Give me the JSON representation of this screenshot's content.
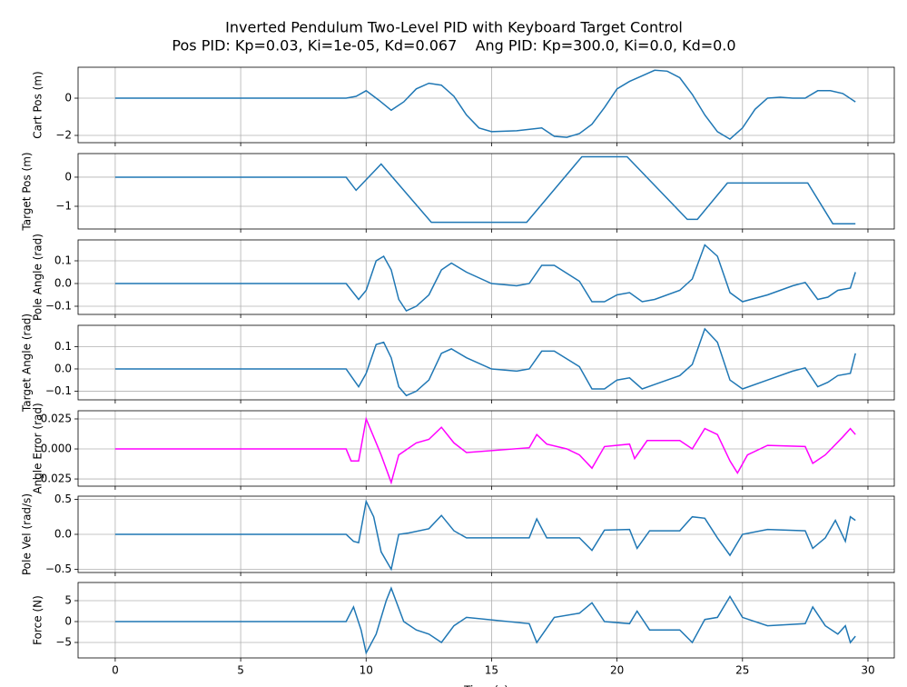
{
  "chart_data": [
    {
      "type": "line",
      "title": "Inverted Pendulum Two-Level PID with Keyboard Target Control",
      "subtitle": "Pos PID: Kp=0.03, Ki=1e-05, Kd=0.067    Ang PID: Kp=300.0, Ki=0.0, Kd=0.0",
      "ylabel": "Cart Pos (m)",
      "color": "#1f77b4",
      "grid": true,
      "xlim": [
        -1.48,
        31.05
      ],
      "xticks": [
        0,
        5,
        10,
        15,
        20,
        25,
        30
      ],
      "ylim": [
        -2.39,
        1.66
      ],
      "yticks": [
        {
          "value": -2,
          "label": "−2"
        },
        0
      ],
      "x": [
        0,
        9.2,
        9.6,
        10,
        10.5,
        11,
        11.5,
        12,
        12.5,
        13,
        13.5,
        14,
        14.5,
        15,
        16,
        17,
        17.5,
        18,
        18.5,
        19,
        19.5,
        20,
        20.5,
        21,
        21.5,
        22,
        22.5,
        23,
        23.5,
        24,
        24.5,
        25,
        25.5,
        26,
        26.5,
        27,
        27.5,
        28,
        28.5,
        29,
        29.5
      ],
      "values": [
        0,
        0,
        0.1,
        0.4,
        -0.1,
        -0.65,
        -0.2,
        0.5,
        0.8,
        0.7,
        0.1,
        -0.9,
        -1.6,
        -1.8,
        -1.75,
        -1.6,
        -2.05,
        -2.1,
        -1.9,
        -1.4,
        -0.5,
        0.5,
        0.9,
        1.2,
        1.5,
        1.45,
        1.1,
        0.2,
        -0.9,
        -1.8,
        -2.2,
        -1.6,
        -0.6,
        0,
        0.05,
        0,
        0,
        0.4,
        0.4,
        0.25,
        -0.2
      ]
    },
    {
      "type": "line",
      "ylabel": "Target Pos (m)",
      "color": "#1f77b4",
      "grid": true,
      "xlim": [
        -1.48,
        31.05
      ],
      "xticks": [
        0,
        5,
        10,
        15,
        20,
        25,
        30
      ],
      "ylim": [
        -1.78,
        0.81
      ],
      "yticks": [
        {
          "value": -1,
          "label": "−1"
        },
        0
      ],
      "x": [
        0,
        9.2,
        9.6,
        10.6,
        12.6,
        16.4,
        18.6,
        20.4,
        22.8,
        23.2,
        24.4,
        27.6,
        28.6,
        29.5
      ],
      "values": [
        0,
        0,
        -0.45,
        0.45,
        -1.55,
        -1.55,
        0.7,
        0.7,
        -1.45,
        -1.45,
        -0.2,
        -0.2,
        -1.6,
        -1.6
      ]
    },
    {
      "type": "line",
      "ylabel": "Pole Angle (rad)",
      "color": "#1f77b4",
      "grid": true,
      "xlim": [
        -1.48,
        31.05
      ],
      "xticks": [
        0,
        5,
        10,
        15,
        20,
        25,
        30
      ],
      "ylim": [
        -0.136,
        0.192
      ],
      "yticks": [
        {
          "value": -0.1,
          "label": "−0.1"
        },
        {
          "value": 0,
          "label": "0.0"
        },
        0.1
      ],
      "x": [
        0,
        9.2,
        9.7,
        10,
        10.4,
        10.7,
        11,
        11.3,
        11.6,
        12,
        12.5,
        13,
        13.4,
        14,
        15,
        16,
        16.5,
        17,
        17.5,
        18.5,
        19,
        19.5,
        20,
        20.5,
        21,
        21.5,
        22.5,
        23,
        23.5,
        24,
        24.5,
        25,
        26,
        27,
        27.5,
        28,
        28.4,
        28.8,
        29.3,
        29.5
      ],
      "values": [
        0,
        0,
        -0.07,
        -0.03,
        0.1,
        0.12,
        0.06,
        -0.07,
        -0.12,
        -0.1,
        -0.05,
        0.06,
        0.09,
        0.05,
        0,
        -0.01,
        0,
        0.08,
        0.08,
        0.01,
        -0.08,
        -0.08,
        -0.05,
        -0.04,
        -0.08,
        -0.07,
        -0.03,
        0.02,
        0.17,
        0.12,
        -0.04,
        -0.08,
        -0.05,
        -0.01,
        0.005,
        -0.07,
        -0.06,
        -0.03,
        -0.02,
        0.05
      ]
    },
    {
      "type": "line",
      "ylabel": "Target Angle (rad)",
      "color": "#1f77b4",
      "grid": true,
      "xlim": [
        -1.48,
        31.05
      ],
      "xticks": [
        0,
        5,
        10,
        15,
        20,
        25,
        30
      ],
      "ylim": [
        -0.139,
        0.196
      ],
      "yticks": [
        {
          "value": -0.1,
          "label": "−0.1"
        },
        {
          "value": 0,
          "label": "0.0"
        },
        0.1
      ],
      "x": [
        0,
        9.2,
        9.7,
        10,
        10.4,
        10.7,
        11,
        11.3,
        11.6,
        12,
        12.5,
        13,
        13.4,
        14,
        15,
        16,
        16.5,
        17,
        17.5,
        18.5,
        19,
        19.5,
        20,
        20.5,
        21,
        21.5,
        22.5,
        23,
        23.5,
        24,
        24.5,
        25,
        26,
        27,
        27.5,
        28,
        28.4,
        28.8,
        29.3,
        29.5
      ],
      "values": [
        0,
        0,
        -0.08,
        -0.02,
        0.11,
        0.12,
        0.05,
        -0.08,
        -0.12,
        -0.1,
        -0.05,
        0.07,
        0.09,
        0.05,
        0,
        -0.01,
        0,
        0.08,
        0.08,
        0.01,
        -0.09,
        -0.09,
        -0.05,
        -0.04,
        -0.09,
        -0.07,
        -0.03,
        0.02,
        0.18,
        0.12,
        -0.05,
        -0.09,
        -0.05,
        -0.01,
        0.005,
        -0.08,
        -0.06,
        -0.03,
        -0.02,
        0.07
      ]
    },
    {
      "type": "line",
      "ylabel": "Angle Error (rad)",
      "color": "#ff00ff",
      "grid": true,
      "xlim": [
        -1.48,
        31.05
      ],
      "xticks": [
        0,
        5,
        10,
        15,
        20,
        25,
        30
      ],
      "ylim": [
        -0.031,
        0.0318
      ],
      "yticks": [
        {
          "value": -0.025,
          "label": "−0.025"
        },
        {
          "value": 0,
          "label": "0.000"
        },
        0.025
      ],
      "x": [
        0,
        9.2,
        9.4,
        9.7,
        10,
        10.3,
        10.6,
        11,
        11.3,
        12,
        12.5,
        13,
        13.5,
        14,
        16.5,
        16.8,
        17.2,
        18,
        18.5,
        19,
        19.5,
        20.5,
        20.7,
        21.2,
        22.5,
        23,
        23.5,
        24,
        24.5,
        24.8,
        25.2,
        26,
        27.5,
        27.8,
        28.3,
        29,
        29.3,
        29.5
      ],
      "values": [
        0,
        0,
        -0.01,
        -0.01,
        0.025,
        0.01,
        -0.005,
        -0.028,
        -0.005,
        0.005,
        0.008,
        0.018,
        0.005,
        -0.003,
        0.001,
        0.012,
        0.004,
        0,
        -0.005,
        -0.016,
        0.002,
        0.004,
        -0.008,
        0.007,
        0.007,
        0,
        0.017,
        0.012,
        -0.01,
        -0.02,
        -0.005,
        0.003,
        0.002,
        -0.012,
        -0.005,
        0.01,
        0.017,
        0.012
      ]
    },
    {
      "type": "line",
      "ylabel": "Pole Vel (rad/s)",
      "color": "#1f77b4",
      "grid": true,
      "xlim": [
        -1.48,
        31.05
      ],
      "xticks": [
        0,
        5,
        10,
        15,
        20,
        25,
        30
      ],
      "ylim": [
        -0.545,
        0.545
      ],
      "yticks": [
        {
          "value": -0.5,
          "label": "−0.5"
        },
        {
          "value": 0,
          "label": "0.0"
        },
        0.5
      ],
      "x": [
        0,
        9.2,
        9.5,
        9.7,
        10,
        10.3,
        10.6,
        11,
        11.3,
        11.7,
        12.5,
        13,
        13.5,
        14,
        16.5,
        16.8,
        17.2,
        18.5,
        19,
        19.5,
        20.5,
        20.8,
        21.3,
        22.5,
        23,
        23.5,
        24,
        24.5,
        25,
        26,
        27.5,
        27.8,
        28.3,
        28.7,
        29.1,
        29.3,
        29.5
      ],
      "values": [
        0,
        0,
        -0.1,
        -0.12,
        0.47,
        0.25,
        -0.25,
        -0.5,
        0,
        0.02,
        0.08,
        0.27,
        0.05,
        -0.05,
        -0.05,
        0.22,
        -0.05,
        -0.05,
        -0.23,
        0.06,
        0.07,
        -0.2,
        0.05,
        0.05,
        0.25,
        0.23,
        -0.05,
        -0.3,
        0,
        0.07,
        0.05,
        -0.2,
        -0.05,
        0.2,
        -0.1,
        0.25,
        0.2
      ]
    },
    {
      "type": "line",
      "ylabel": "Force (N)",
      "xlabel": "Time (s)",
      "color": "#1f77b4",
      "grid": true,
      "xlim": [
        -1.48,
        31.05
      ],
      "xticks": [
        0,
        5,
        10,
        15,
        20,
        25,
        30
      ],
      "ylim": [
        -8.7,
        9.35
      ],
      "yticks": [
        {
          "value": -5,
          "label": "−5"
        },
        0,
        5
      ],
      "x": [
        0,
        9.2,
        9.5,
        9.8,
        10,
        10.4,
        10.8,
        11,
        11.5,
        12,
        12.5,
        13,
        13.5,
        14,
        16.5,
        16.8,
        17.5,
        18.5,
        19,
        19.5,
        20.5,
        20.8,
        21.3,
        22.5,
        23,
        23.5,
        24,
        24.5,
        25,
        26,
        27.5,
        27.8,
        28.3,
        28.8,
        29.1,
        29.3,
        29.5
      ],
      "values": [
        0,
        0,
        3.5,
        -2,
        -7.5,
        -3,
        5,
        8,
        0,
        -2,
        -3,
        -5,
        -1,
        1,
        -0.5,
        -5,
        1,
        2,
        4.5,
        0,
        -0.5,
        2.5,
        -2,
        -2,
        -5,
        0.5,
        1,
        6,
        1,
        -1,
        -0.5,
        3.5,
        -1,
        -3,
        -1,
        -5,
        -3.5
      ]
    }
  ]
}
